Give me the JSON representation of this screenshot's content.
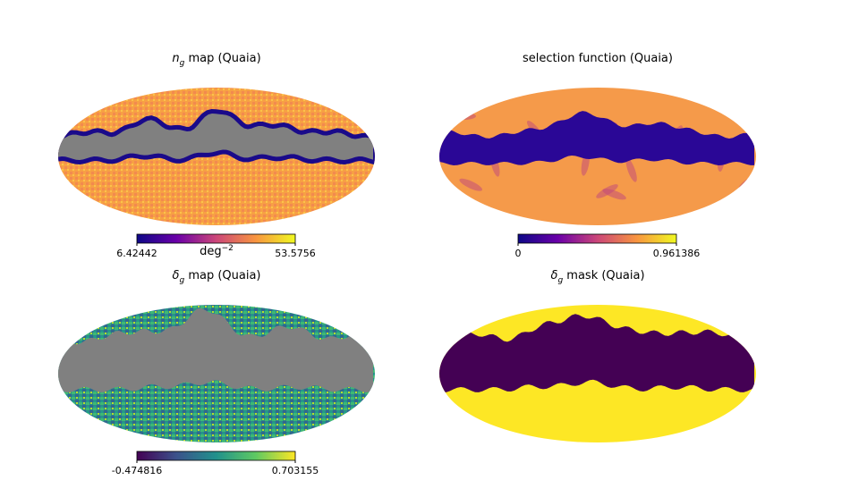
{
  "panels": [
    {
      "title": {
        "symbol": "n",
        "subscript": "g",
        "text": " map (Quaia)"
      },
      "colorbar": {
        "min": 6.42442,
        "max": 53.5756,
        "unit": "deg",
        "unit_exponent": "−2"
      }
    },
    {
      "title": {
        "text": "selection function (Quaia)"
      },
      "colorbar": {
        "min": 0,
        "max": 0.961386
      }
    },
    {
      "title": {
        "symbol": "δ",
        "subscript": "g",
        "text": " map (Quaia)"
      },
      "colorbar": {
        "min": -0.474816,
        "max": 0.703155
      }
    },
    {
      "title": {
        "symbol": "δ",
        "subscript": "g",
        "text": " mask (Quaia)"
      }
    }
  ]
}
